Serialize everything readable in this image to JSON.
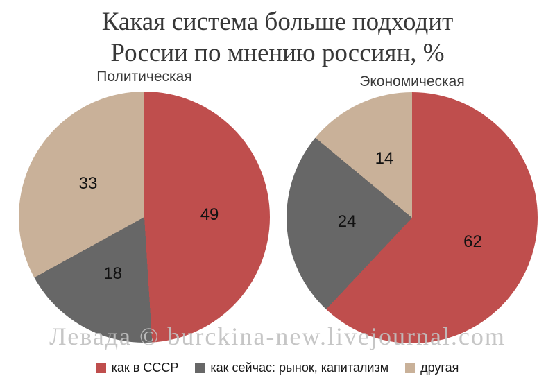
{
  "title": {
    "line1": "Какая система больше подходит",
    "line2": "России по мнению россиян, %"
  },
  "watermark": "Левада © burckina-new.livejournal.com",
  "colors": {
    "ussr_red": "#BF4E4D",
    "current_gray": "#676767",
    "other_tan": "#C9B199"
  },
  "chart_data": [
    {
      "type": "pie",
      "title": "Политическая",
      "categories": [
        "как в СССР",
        "как сейчас: рынок, капитализм",
        "другая"
      ],
      "values": [
        49,
        18,
        33
      ],
      "colors": [
        "#BF4E4D",
        "#676767",
        "#C9B199"
      ],
      "start_angle": "top",
      "direction": "clockwise",
      "data_labels": "inside",
      "legend_position": "bottom"
    },
    {
      "type": "pie",
      "title": "Экономическая",
      "categories": [
        "как в СССР",
        "как сейчас: рынок, капитализм",
        "другая"
      ],
      "values": [
        62,
        24,
        14
      ],
      "colors": [
        "#BF4E4D",
        "#676767",
        "#C9B199"
      ],
      "start_angle": "top",
      "direction": "clockwise",
      "data_labels": "inside",
      "legend_position": "bottom"
    }
  ],
  "legend": {
    "items": [
      {
        "label": "как в СССР",
        "color": "#BF4E4D"
      },
      {
        "label": "как сейчас: рынок, капитализм",
        "color": "#676767"
      },
      {
        "label": "другая",
        "color": "#C9B199"
      }
    ]
  }
}
